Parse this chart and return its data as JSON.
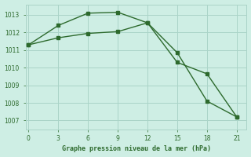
{
  "line1_x": [
    0,
    3,
    6,
    9,
    12,
    15,
    18,
    21
  ],
  "line1_y": [
    1011.3,
    1012.4,
    1013.1,
    1013.15,
    1012.55,
    1010.3,
    1009.65,
    1007.2
  ],
  "line2_x": [
    0,
    3,
    6,
    9,
    12,
    15,
    18,
    21
  ],
  "line2_y": [
    1011.3,
    1011.7,
    1011.95,
    1012.05,
    1012.55,
    1010.85,
    1008.1,
    1007.2
  ],
  "line_color": "#2d6a2d",
  "bg_color": "#ceeee4",
  "grid_color": "#aad4c8",
  "xlabel": "Graphe pression niveau de la mer (hPa)",
  "xticks": [
    0,
    3,
    6,
    9,
    12,
    15,
    18,
    21
  ],
  "yticks": [
    1007,
    1008,
    1009,
    1010,
    1011,
    1012,
    1013
  ],
  "ylim": [
    1006.5,
    1013.6
  ],
  "xlim": [
    -0.3,
    22.0
  ]
}
